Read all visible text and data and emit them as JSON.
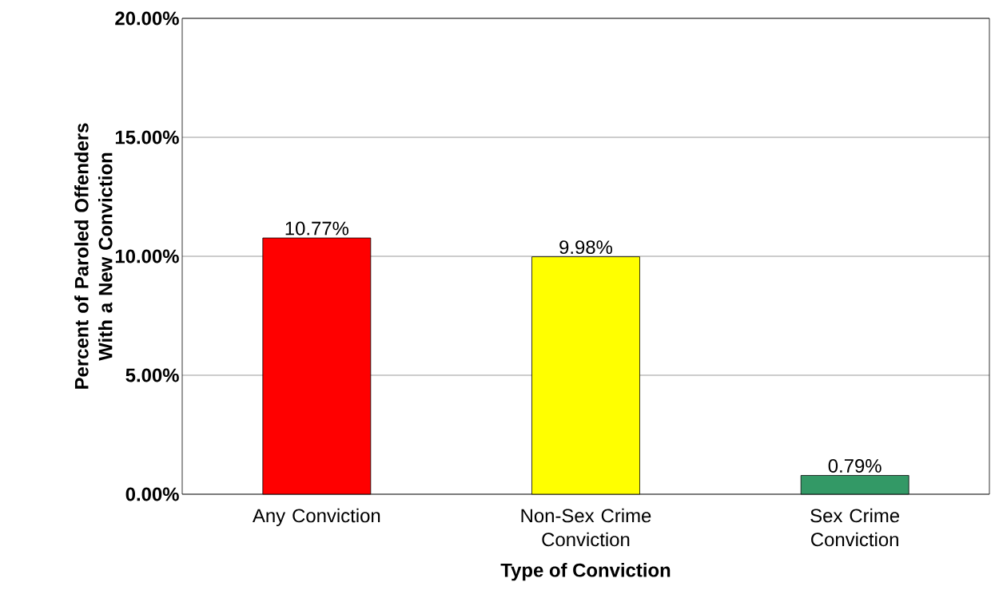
{
  "chart_data": {
    "type": "bar",
    "xlabel": "Type of Conviction",
    "ylabel": "Percent of Paroled Offenders With a New Conviction",
    "categories": [
      "Any Conviction",
      "Non-Sex Crime Conviction",
      "Sex Crime Conviction"
    ],
    "values": [
      10.77,
      9.98,
      0.79
    ],
    "colors": [
      "#ff0000",
      "#ffff00",
      "#339966"
    ],
    "value_labels": [
      "10.77%",
      "9.98%",
      "0.79%"
    ],
    "ylim": [
      0,
      20
    ],
    "yticks": [
      {
        "value": 0,
        "label": "0.00%"
      },
      {
        "value": 5,
        "label": "5.00%"
      },
      {
        "value": 10,
        "label": "10.00%"
      },
      {
        "value": 15,
        "label": "15.00%"
      },
      {
        "value": 20,
        "label": "20.00%"
      }
    ],
    "grid": "y"
  }
}
